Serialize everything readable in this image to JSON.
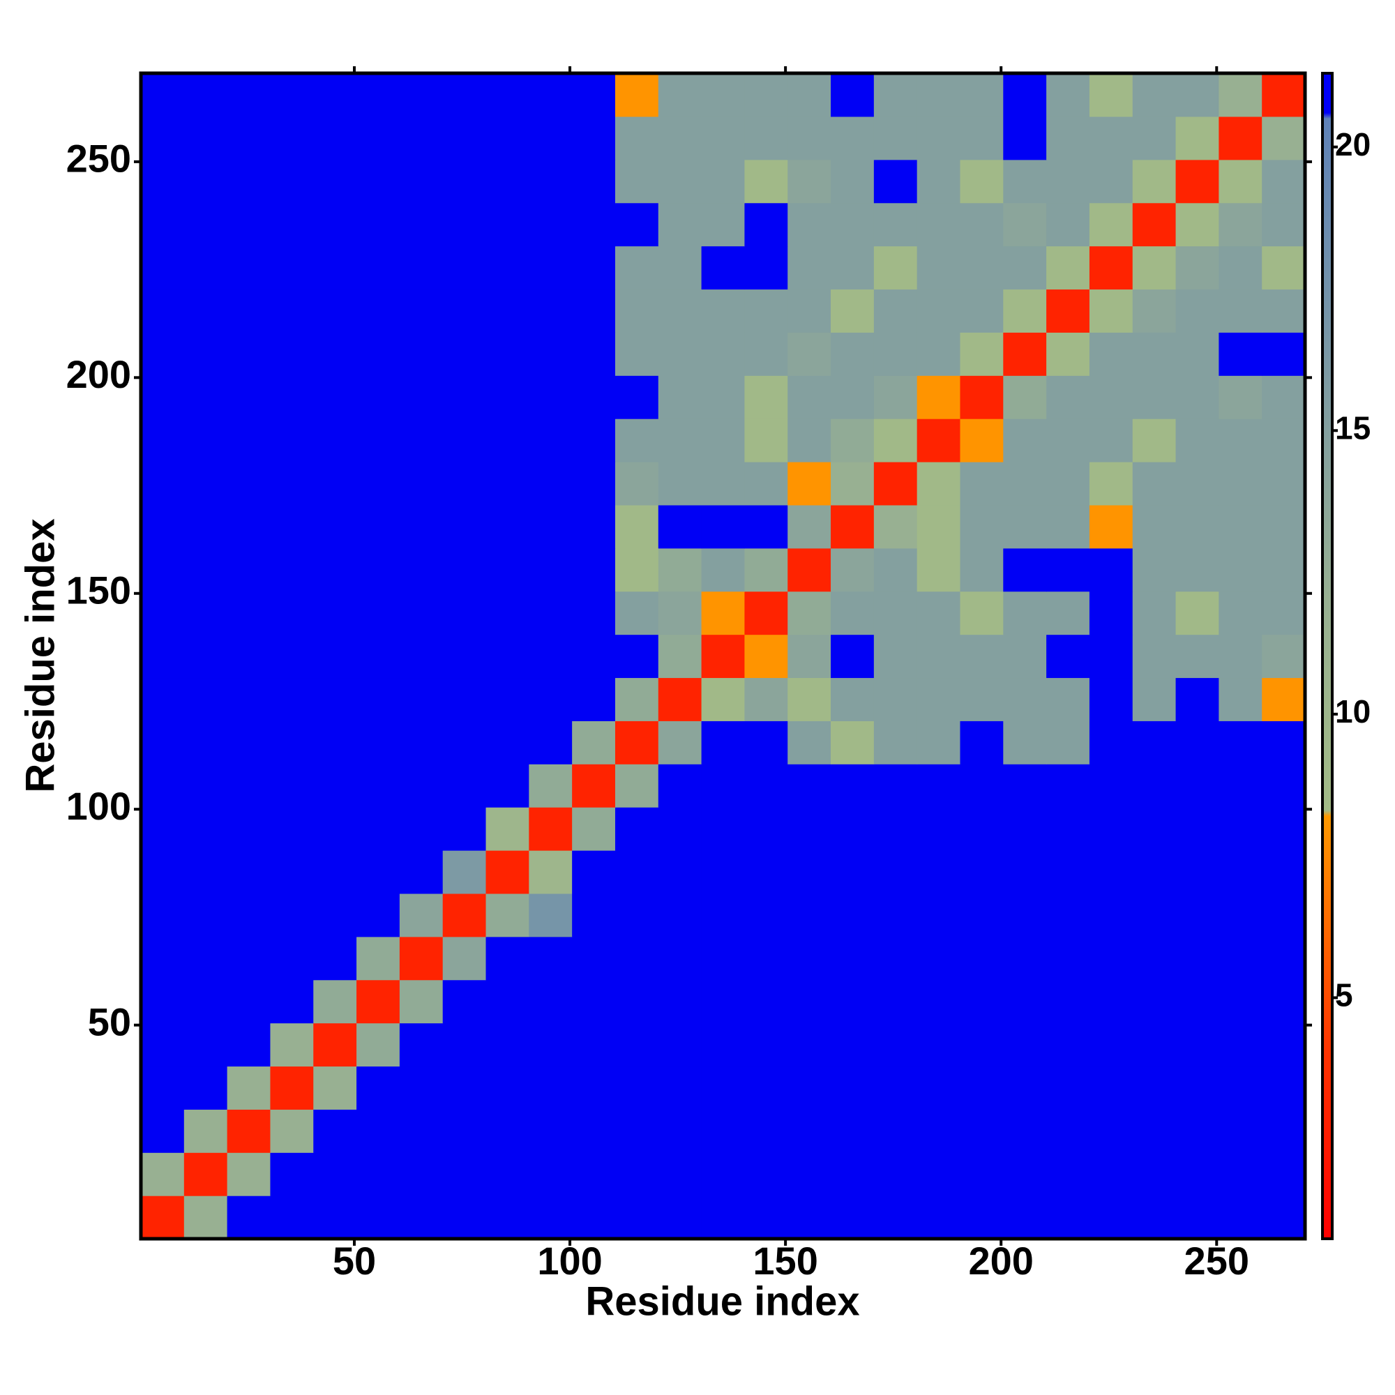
{
  "chart_data": {
    "type": "heatmap",
    "xlabel": "Residue index",
    "ylabel": "Residue index",
    "xlim": [
      0.5,
      270.5
    ],
    "ylim": [
      0.5,
      270.5
    ],
    "xticks": [
      50,
      100,
      150,
      200,
      250
    ],
    "yticks": [
      50,
      100,
      150,
      200,
      250
    ],
    "zlim": [
      0.75,
      21.3
    ],
    "zticks": [
      5,
      10,
      15,
      20
    ],
    "colorscale": [
      [
        0.75,
        "#ff0000"
      ],
      [
        4,
        "#ff3300"
      ],
      [
        8.2,
        "#ff9900"
      ],
      [
        8.3,
        "#a3bb86"
      ],
      [
        12,
        "#98b092"
      ],
      [
        20.5,
        "#5f82b8"
      ],
      [
        20.6,
        "#0000f5"
      ],
      [
        21.3,
        "#0000f5"
      ]
    ],
    "x": [
      5.5,
      15.5,
      25.5,
      35.5,
      45.5,
      55.5,
      65.5,
      75.5,
      85.5,
      95.5,
      105.5,
      115.5,
      125.5,
      135.5,
      145.5,
      155.5,
      165.5,
      175.5,
      185.5,
      195.5,
      205.5,
      215.5,
      225.5,
      235.5,
      245.5,
      255.5,
      265.5
    ],
    "y": [
      5.5,
      15.5,
      25.5,
      35.5,
      45.5,
      55.5,
      65.5,
      75.5,
      85.5,
      95.5,
      105.5,
      115.5,
      125.5,
      135.5,
      145.5,
      155.5,
      165.5,
      175.5,
      185.5,
      195.5,
      205.5,
      215.5,
      225.5,
      235.5,
      245.5,
      255.5,
      265.5
    ],
    "z": [
      [
        3,
        12,
        21,
        21,
        21,
        21,
        21,
        21,
        21,
        21,
        21,
        21,
        21,
        21,
        21,
        21,
        21,
        21,
        21,
        21,
        21,
        21,
        21,
        21,
        21,
        21,
        21
      ],
      [
        12,
        3,
        12,
        21,
        21,
        21,
        21,
        21,
        21,
        21,
        21,
        21,
        21,
        21,
        21,
        21,
        21,
        21,
        21,
        21,
        21,
        21,
        21,
        21,
        21,
        21,
        21
      ],
      [
        21,
        12,
        3,
        12,
        21,
        21,
        21,
        21,
        21,
        21,
        21,
        21,
        21,
        21,
        21,
        21,
        21,
        21,
        21,
        21,
        21,
        21,
        21,
        21,
        21,
        21,
        21
      ],
      [
        21,
        21,
        12,
        3,
        12,
        21,
        21,
        21,
        21,
        21,
        21,
        21,
        21,
        21,
        21,
        21,
        21,
        21,
        21,
        21,
        21,
        21,
        21,
        21,
        21,
        21,
        21
      ],
      [
        21,
        21,
        21,
        12,
        3,
        13,
        21,
        21,
        21,
        21,
        21,
        21,
        21,
        21,
        21,
        21,
        21,
        21,
        21,
        21,
        21,
        21,
        21,
        21,
        21,
        21,
        21
      ],
      [
        21,
        21,
        21,
        21,
        13,
        3,
        13,
        21,
        21,
        21,
        21,
        21,
        21,
        21,
        21,
        21,
        21,
        21,
        21,
        21,
        21,
        21,
        21,
        21,
        21,
        21,
        21
      ],
      [
        21,
        21,
        21,
        21,
        21,
        13,
        3,
        14,
        21,
        21,
        21,
        21,
        21,
        21,
        21,
        21,
        21,
        21,
        21,
        21,
        21,
        21,
        21,
        21,
        21,
        21,
        21
      ],
      [
        21,
        21,
        21,
        21,
        21,
        21,
        14,
        3,
        13,
        17,
        21,
        21,
        21,
        21,
        21,
        21,
        21,
        21,
        21,
        21,
        21,
        21,
        21,
        21,
        21,
        21,
        21
      ],
      [
        21,
        21,
        21,
        21,
        21,
        21,
        21,
        16,
        3,
        10,
        21,
        21,
        21,
        21,
        21,
        21,
        21,
        21,
        21,
        21,
        21,
        21,
        21,
        21,
        21,
        21,
        21
      ],
      [
        21,
        21,
        21,
        21,
        21,
        21,
        21,
        21,
        10,
        3,
        13,
        21,
        21,
        21,
        21,
        21,
        21,
        21,
        21,
        21,
        21,
        21,
        21,
        21,
        21,
        21,
        21
      ],
      [
        21,
        21,
        21,
        21,
        21,
        21,
        21,
        21,
        21,
        13,
        3,
        13,
        21,
        21,
        21,
        21,
        21,
        21,
        21,
        21,
        21,
        21,
        21,
        21,
        21,
        21,
        21
      ],
      [
        21,
        21,
        21,
        21,
        21,
        21,
        21,
        21,
        21,
        21,
        13,
        3,
        14,
        21,
        21,
        15,
        9,
        15,
        15,
        21,
        15,
        15,
        21,
        21,
        21,
        21,
        21
      ],
      [
        21,
        21,
        21,
        21,
        21,
        21,
        21,
        21,
        21,
        21,
        21,
        13,
        3,
        9,
        14,
        9,
        15,
        15,
        15,
        15,
        15,
        15,
        21,
        15,
        21,
        15,
        8
      ],
      [
        21,
        21,
        21,
        21,
        21,
        21,
        21,
        21,
        21,
        21,
        21,
        21,
        13,
        3,
        8,
        14,
        21,
        15,
        15,
        15,
        15,
        21,
        21,
        15,
        15,
        15,
        14
      ],
      [
        21,
        21,
        21,
        21,
        21,
        21,
        21,
        21,
        21,
        21,
        21,
        15,
        14,
        8,
        3,
        13,
        15,
        15,
        15,
        9,
        15,
        15,
        21,
        15,
        9,
        15,
        15
      ],
      [
        21,
        21,
        21,
        21,
        21,
        21,
        21,
        21,
        21,
        21,
        21,
        9,
        13,
        15,
        13,
        3,
        14,
        15,
        9,
        15,
        21,
        21,
        21,
        15,
        15,
        15,
        15
      ],
      [
        21,
        21,
        21,
        21,
        21,
        21,
        21,
        21,
        21,
        21,
        21,
        9,
        21,
        21,
        21,
        14,
        3,
        12,
        9,
        15,
        15,
        15,
        8,
        15,
        15,
        15,
        15
      ],
      [
        21,
        21,
        21,
        21,
        21,
        21,
        21,
        21,
        21,
        21,
        21,
        14,
        15,
        15,
        15,
        8,
        12,
        3,
        9,
        15,
        15,
        15,
        9,
        15,
        15,
        15,
        15
      ],
      [
        21,
        21,
        21,
        21,
        21,
        21,
        21,
        21,
        21,
        21,
        21,
        15,
        15,
        15,
        9,
        15,
        13,
        9,
        3,
        8,
        15,
        15,
        15,
        9,
        15,
        15,
        15
      ],
      [
        21,
        21,
        21,
        21,
        21,
        21,
        21,
        21,
        21,
        21,
        21,
        21,
        15,
        15,
        9,
        15,
        15,
        14,
        8,
        3,
        13,
        15,
        15,
        15,
        15,
        14,
        15
      ],
      [
        21,
        21,
        21,
        21,
        21,
        21,
        21,
        21,
        21,
        21,
        21,
        15,
        15,
        15,
        15,
        14,
        15,
        15,
        15,
        9,
        3,
        9,
        15,
        15,
        15,
        21,
        21
      ],
      [
        21,
        21,
        21,
        21,
        21,
        21,
        21,
        21,
        21,
        21,
        21,
        15,
        15,
        15,
        15,
        15,
        9,
        15,
        15,
        15,
        9,
        3,
        9,
        14,
        15,
        15,
        15
      ],
      [
        21,
        21,
        21,
        21,
        21,
        21,
        21,
        21,
        21,
        21,
        21,
        15,
        15,
        21,
        21,
        15,
        15,
        9,
        15,
        15,
        15,
        9,
        3,
        9,
        14,
        15,
        9
      ],
      [
        21,
        21,
        21,
        21,
        21,
        21,
        21,
        21,
        21,
        21,
        21,
        21,
        15,
        15,
        21,
        15,
        15,
        15,
        15,
        15,
        14,
        15,
        9,
        3,
        9,
        14,
        15
      ],
      [
        21,
        21,
        21,
        21,
        21,
        21,
        21,
        21,
        21,
        21,
        21,
        15,
        15,
        15,
        9,
        14,
        15,
        21,
        15,
        9,
        15,
        15,
        15,
        9,
        3,
        9,
        15
      ],
      [
        21,
        21,
        21,
        21,
        21,
        21,
        21,
        21,
        21,
        21,
        21,
        15,
        15,
        15,
        15,
        15,
        15,
        15,
        15,
        15,
        21,
        15,
        15,
        15,
        9,
        3,
        12
      ],
      [
        21,
        21,
        21,
        21,
        21,
        21,
        21,
        21,
        21,
        21,
        21,
        8,
        15,
        15,
        15,
        15,
        21,
        15,
        15,
        15,
        21,
        15,
        9,
        15,
        15,
        12,
        3
      ]
    ]
  }
}
